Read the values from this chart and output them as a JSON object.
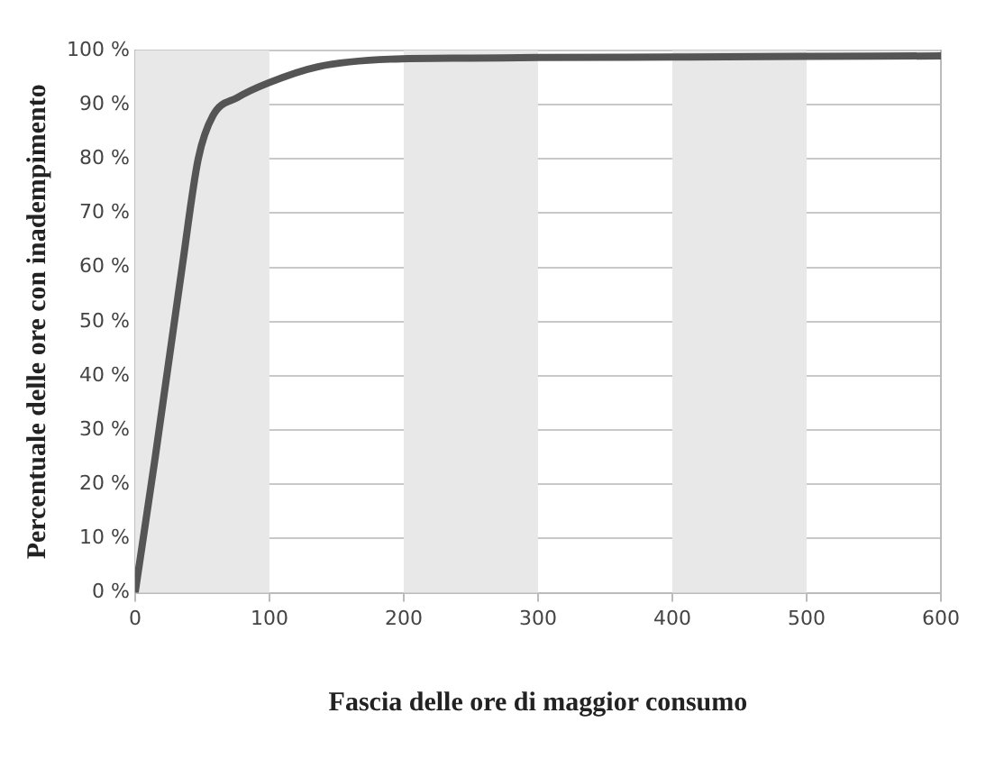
{
  "chart_data": {
    "type": "line",
    "xlabel": "Fascia delle ore di maggior consumo",
    "ylabel": "Percentuale delle ore con inadempimento",
    "x": [
      0,
      15,
      35,
      47,
      58,
      76,
      99,
      136,
      190,
      250,
      300,
      400,
      500,
      600
    ],
    "series": [
      {
        "color": "#555555",
        "values": [
          0,
          25,
          60,
          80,
          88,
          91.3,
          94,
          97,
          98.4,
          98.6,
          98.7,
          98.8,
          98.9,
          99
        ]
      }
    ],
    "xlim": [
      0,
      600
    ],
    "xticks": [
      0,
      100,
      200,
      300,
      400,
      500,
      600
    ],
    "ylim": [
      0,
      100
    ],
    "yticks": [
      {
        "value": 0,
        "label": "0 %"
      },
      {
        "value": 10,
        "label": "10 %"
      },
      {
        "value": 20,
        "label": "20 %"
      },
      {
        "value": 30,
        "label": "30 %"
      },
      {
        "value": 40,
        "label": "40 %"
      },
      {
        "value": 50,
        "label": "50 %"
      },
      {
        "value": 60,
        "label": "60 %"
      },
      {
        "value": 70,
        "label": "70 %"
      },
      {
        "value": 80,
        "label": "80 %"
      },
      {
        "value": 90,
        "label": "90 %"
      },
      {
        "value": 100,
        "label": "100 %"
      }
    ],
    "bands": [
      {
        "axis": "x",
        "from": 0,
        "to": 100,
        "color": "#e8e8e8"
      },
      {
        "axis": "x",
        "from": 200,
        "to": 300,
        "color": "#e8e8e8"
      },
      {
        "axis": "x",
        "from": 400,
        "to": 500,
        "color": "#e8e8e8"
      }
    ],
    "grid": "y",
    "legend": false,
    "marker": "none",
    "line_style": "solid"
  }
}
